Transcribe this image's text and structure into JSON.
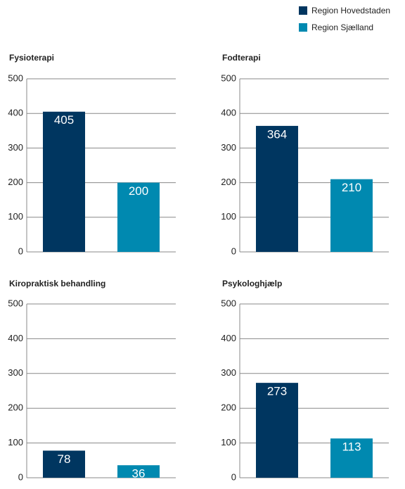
{
  "legend": [
    {
      "name": "Region Hovedstaden",
      "color": "#003660"
    },
    {
      "name": "Region Sjælland",
      "color": "#0089b0"
    }
  ],
  "chart_data": [
    {
      "type": "bar",
      "title": "Fysioterapi",
      "values": [
        405,
        200
      ],
      "ylim": [
        0,
        500
      ],
      "yticks": [
        0,
        100,
        200,
        300,
        400,
        500
      ],
      "grid": true
    },
    {
      "type": "bar",
      "title": "Fodterapi",
      "values": [
        364,
        210
      ],
      "ylim": [
        0,
        500
      ],
      "yticks": [
        0,
        100,
        200,
        300,
        400,
        500
      ],
      "grid": true
    },
    {
      "type": "bar",
      "title": "Kiropraktisk behandling",
      "values": [
        78,
        36
      ],
      "ylim": [
        0,
        500
      ],
      "yticks": [
        0,
        100,
        200,
        300,
        400,
        500
      ],
      "grid": true
    },
    {
      "type": "bar",
      "title": "Psykologhjælp",
      "values": [
        273,
        113
      ],
      "ylim": [
        0,
        500
      ],
      "yticks": [
        0,
        100,
        200,
        300,
        400,
        500
      ],
      "grid": true
    }
  ]
}
